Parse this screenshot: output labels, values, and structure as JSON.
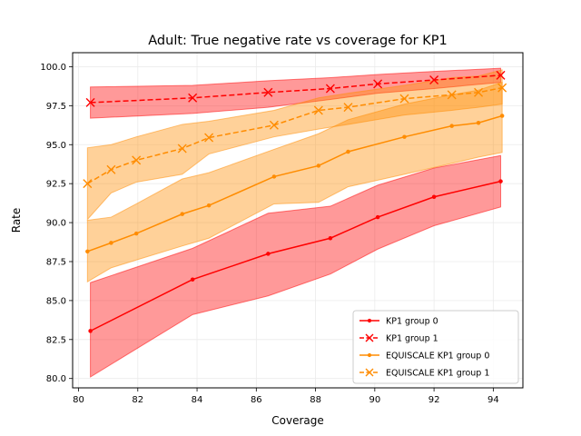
{
  "chart_data": {
    "type": "line",
    "title": "Adult: True negative rate vs coverage for KP1",
    "xlabel": "Coverage",
    "ylabel": "Rate",
    "xlim": [
      79.8,
      95.0
    ],
    "ylim": [
      79.4,
      100.9
    ],
    "xticks": [
      80,
      82,
      84,
      86,
      88,
      90,
      92,
      94
    ],
    "yticks": [
      80.0,
      82.5,
      85.0,
      87.5,
      90.0,
      92.5,
      95.0,
      97.5,
      100.0
    ],
    "xtick_labels": [
      "80",
      "82",
      "84",
      "86",
      "88",
      "90",
      "92",
      "94"
    ],
    "ytick_labels": [
      "80.0",
      "82.5",
      "85.0",
      "87.5",
      "90.0",
      "92.5",
      "95.0",
      "97.5",
      "100.0"
    ],
    "grid": true,
    "legend_position": "lower-right",
    "series": [
      {
        "name": "KP1 group 0",
        "color": "#ff0000",
        "marker": "dot",
        "line_style": "solid",
        "x": [
          80.4,
          83.85,
          86.4,
          88.5,
          90.1,
          92.0,
          94.25
        ],
        "y": [
          83.05,
          86.35,
          88.0,
          89.0,
          90.35,
          91.65,
          92.65
        ],
        "lower": [
          80.1,
          84.1,
          85.3,
          86.7,
          88.3,
          89.8,
          91.0
        ],
        "upper": [
          86.15,
          88.35,
          90.6,
          91.05,
          92.4,
          93.5,
          94.3
        ]
      },
      {
        "name": "KP1 group 1",
        "color": "#ff0000",
        "marker": "x",
        "line_style": "dashed",
        "x": [
          80.4,
          83.85,
          86.4,
          88.5,
          90.1,
          92.0,
          94.25
        ],
        "y": [
          97.7,
          98.0,
          98.35,
          98.6,
          98.9,
          99.15,
          99.45
        ],
        "lower": [
          96.7,
          97.0,
          97.4,
          97.9,
          98.3,
          98.6,
          99.0
        ],
        "upper": [
          98.7,
          98.8,
          99.1,
          99.3,
          99.5,
          99.7,
          99.9
        ]
      },
      {
        "name": "EQUISCALE KP1 group 0",
        "color": "#ff8c00",
        "marker": "dot",
        "line_style": "solid",
        "x": [
          80.3,
          81.1,
          81.95,
          83.5,
          84.4,
          86.6,
          88.1,
          89.1,
          91.0,
          92.6,
          93.5,
          94.3
        ],
        "y": [
          88.15,
          88.7,
          89.3,
          90.55,
          91.1,
          92.95,
          93.65,
          94.55,
          95.5,
          96.2,
          96.4,
          96.85
        ],
        "lower": [
          86.2,
          87.1,
          87.6,
          88.5,
          89.0,
          91.2,
          91.3,
          92.3,
          93.1,
          93.8,
          94.2,
          94.5
        ],
        "upper": [
          90.15,
          90.35,
          91.2,
          92.8,
          93.2,
          94.7,
          95.7,
          96.6,
          97.6,
          98.2,
          98.5,
          99.0
        ]
      },
      {
        "name": "EQUISCALE KP1 group 1",
        "color": "#ff8c00",
        "marker": "x",
        "line_style": "dashed",
        "x": [
          80.3,
          81.1,
          81.95,
          83.5,
          84.4,
          86.6,
          88.1,
          89.1,
          91.0,
          92.6,
          93.5,
          94.3
        ],
        "y": [
          92.5,
          93.4,
          94.0,
          94.75,
          95.45,
          96.25,
          97.2,
          97.4,
          97.95,
          98.2,
          98.35,
          98.65
        ],
        "lower": [
          90.2,
          91.9,
          92.6,
          93.1,
          94.4,
          95.5,
          96.0,
          96.3,
          96.9,
          97.2,
          97.4,
          97.6
        ],
        "upper": [
          94.8,
          95.0,
          95.5,
          96.3,
          96.5,
          97.2,
          98.0,
          98.3,
          98.8,
          99.3,
          99.4,
          99.8
        ]
      }
    ]
  }
}
